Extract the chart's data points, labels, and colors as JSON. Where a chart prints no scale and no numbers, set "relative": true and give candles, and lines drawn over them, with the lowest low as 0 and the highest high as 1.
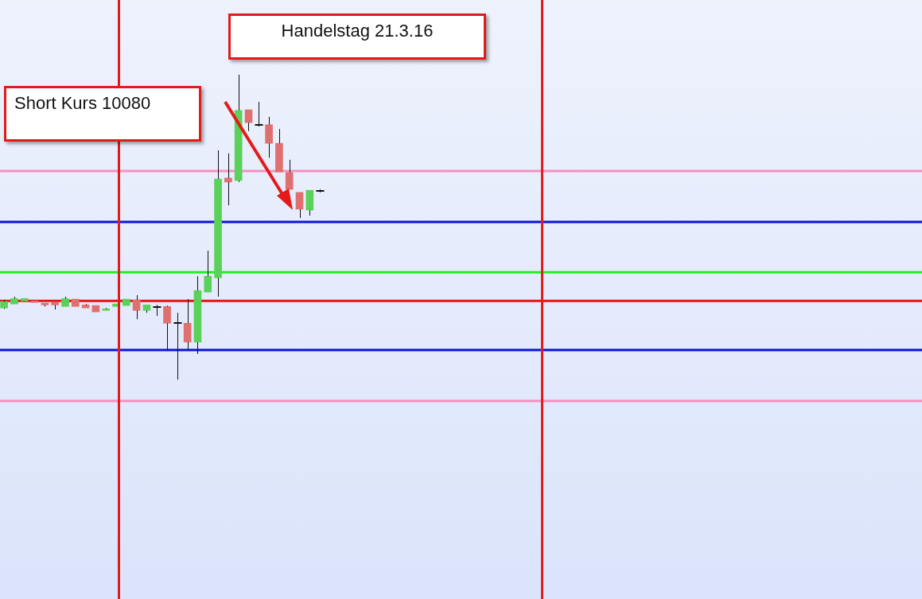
{
  "chart_data": {
    "type": "candlestick",
    "relative": true,
    "categories": [
      null,
      null,
      null,
      null,
      null,
      null,
      null,
      null,
      null,
      null,
      null,
      null,
      null,
      null,
      null,
      null,
      null,
      null,
      null,
      null,
      null,
      null,
      null,
      null,
      null,
      null,
      null,
      null,
      null,
      null,
      null,
      null
    ],
    "ohlc": [
      [
        0.235,
        0.261,
        0.232,
        0.256
      ],
      [
        0.248,
        0.272,
        0.248,
        0.266
      ],
      [
        0.258,
        0.266,
        0.258,
        0.266
      ],
      [
        0.258,
        0.258,
        0.253,
        0.253
      ],
      [
        0.251,
        0.251,
        0.24,
        0.245
      ],
      [
        0.253,
        0.253,
        0.23,
        0.245
      ],
      [
        0.24,
        0.272,
        0.24,
        0.266
      ],
      [
        0.264,
        0.264,
        0.24,
        0.24
      ],
      [
        0.245,
        0.248,
        0.235,
        0.235
      ],
      [
        0.243,
        0.243,
        0.222,
        0.222
      ],
      [
        0.227,
        0.235,
        0.227,
        0.232
      ],
      [
        0.24,
        0.248,
        0.24,
        0.248
      ],
      [
        0.243,
        0.264,
        0.243,
        0.264
      ],
      [
        0.261,
        0.277,
        0.198,
        0.227
      ],
      [
        0.227,
        0.245,
        0.219,
        0.245
      ],
      [
        0.238,
        0.245,
        0.209,
        0.238
      ],
      [
        0.24,
        0.243,
        0.099,
        0.185
      ],
      [
        0.185,
        0.219,
        0,
        0.185
      ],
      [
        0.185,
        0.264,
        0.099,
        0.123
      ],
      [
        0.123,
        0.339,
        0.084,
        0.292
      ],
      [
        0.287,
        0.423,
        0.287,
        0.339
      ],
      [
        0.334,
        0.752,
        0.272,
        0.658
      ],
      [
        0.661,
        0.742,
        0.572,
        0.648
      ],
      [
        0.653,
        1,
        0.648,
        0.883
      ],
      [
        0.885,
        0.885,
        0.815,
        0.843
      ],
      [
        0.836,
        0.911,
        0.83,
        0.836
      ],
      [
        0.836,
        0.862,
        0.728,
        0.775
      ],
      [
        0.775,
        0.822,
        0.681,
        0.681
      ],
      [
        0.679,
        0.721,
        0.624,
        0.624
      ],
      [
        0.614,
        0.614,
        0.53,
        0.559
      ],
      [
        0.556,
        0.621,
        0.538,
        0.621
      ],
      [
        0.619,
        0.624,
        0.614,
        0.619
      ]
    ],
    "colors": [
      "#5ad25a",
      "#5ad25a",
      "#5ad25a",
      "#e07070",
      "#e07070",
      "#e07070",
      "#5ad25a",
      "#e07070",
      "#e07070",
      "#e07070",
      "#5ad25a",
      "#5ad25a",
      "#5ad25a",
      "#e07070",
      "#5ad25a",
      "#e07070",
      "#e07070",
      "#e07070",
      "#e07070",
      "#5ad25a",
      "#5ad25a",
      "#5ad25a",
      "#e07070",
      "#5ad25a",
      "#e07070",
      "#e07070",
      "#e07070",
      "#e07070",
      "#e07070",
      "#e07070",
      "#5ad25a",
      "#e07070"
    ],
    "ref_lines": [
      {
        "axis": "y",
        "value": 0.684,
        "color": "#f78fc0"
      },
      {
        "axis": "y",
        "value": 0.517,
        "color": "#0a14d6"
      },
      {
        "axis": "y",
        "value": 0.352,
        "color": "#22ee22"
      },
      {
        "axis": "y",
        "value": 0.258,
        "color": "#e81414"
      },
      {
        "axis": "y",
        "value": 0.097,
        "color": "#0a14d6"
      },
      {
        "axis": "y",
        "value": -0.07,
        "color": "#f78fc0"
      }
    ],
    "annotations": [
      "Handelstag 21.3.16",
      "Short Kurs 10080"
    ],
    "grid": false,
    "legend": false,
    "tick_labels": false
  }
}
